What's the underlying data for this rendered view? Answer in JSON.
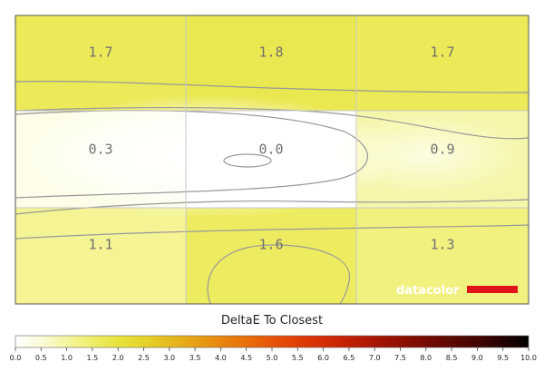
{
  "brand": {
    "text": "datacolor",
    "bar_color": "#e0131b"
  },
  "chart_data": {
    "type": "heatmap",
    "title": "DeltaE To Closest",
    "rows": 3,
    "cols": 3,
    "values": [
      [
        1.7,
        1.8,
        1.7
      ],
      [
        0.3,
        0.0,
        0.9
      ],
      [
        1.1,
        1.6,
        1.3
      ]
    ],
    "colorbar": {
      "min": 0,
      "max": 10,
      "ticks": [
        "0.0",
        "0.5",
        "1.0",
        "1.5",
        "2.0",
        "2.5",
        "3.0",
        "3.5",
        "4.0",
        "4.5",
        "5.0",
        "5.5",
        "6.0",
        "6.5",
        "7.0",
        "7.5",
        "8.0",
        "8.5",
        "9.0",
        "9.5",
        "10.0"
      ],
      "colors": [
        "#ffffff",
        "#fbfbd8",
        "#f5f5a0",
        "#eeee6a",
        "#e8e43e",
        "#e6d32a",
        "#e6bb1e",
        "#e6a014",
        "#e8870e",
        "#e86e0a",
        "#e65508",
        "#e03e06",
        "#d42c05",
        "#c01f04",
        "#a81603",
        "#8f1003",
        "#760b02",
        "#5c0702",
        "#420401",
        "#240201",
        "#000000"
      ]
    },
    "grid": true
  }
}
